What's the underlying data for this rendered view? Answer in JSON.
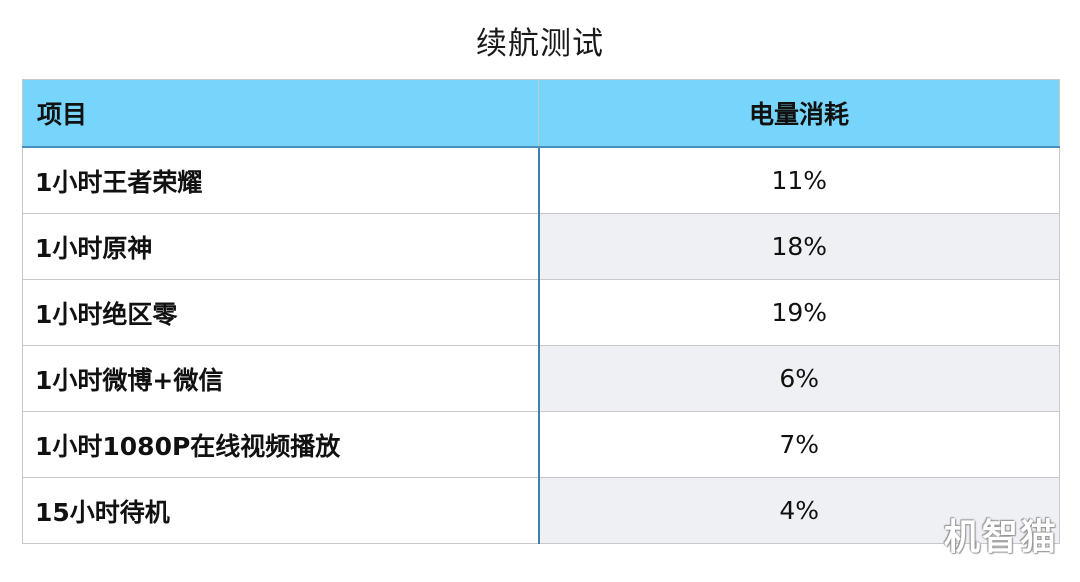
{
  "title": "续航测试",
  "table": {
    "headers": [
      "项目",
      "电量消耗"
    ],
    "rows": [
      {
        "item": "1小时王者荣耀",
        "value": "11%"
      },
      {
        "item": "1小时原神",
        "value": "18%"
      },
      {
        "item": "1小时绝区零",
        "value": "19%"
      },
      {
        "item": "1小时微博+微信",
        "value": "6%"
      },
      {
        "item": "1小时1080P在线视频播放",
        "value": "7%"
      },
      {
        "item": "15小时待机",
        "value": "4%"
      }
    ]
  },
  "watermark": "机智猫",
  "colors": {
    "header_bg": "#77d5fb",
    "alt_row_bg": "#eef0f4",
    "divider": "#3f7fae"
  }
}
